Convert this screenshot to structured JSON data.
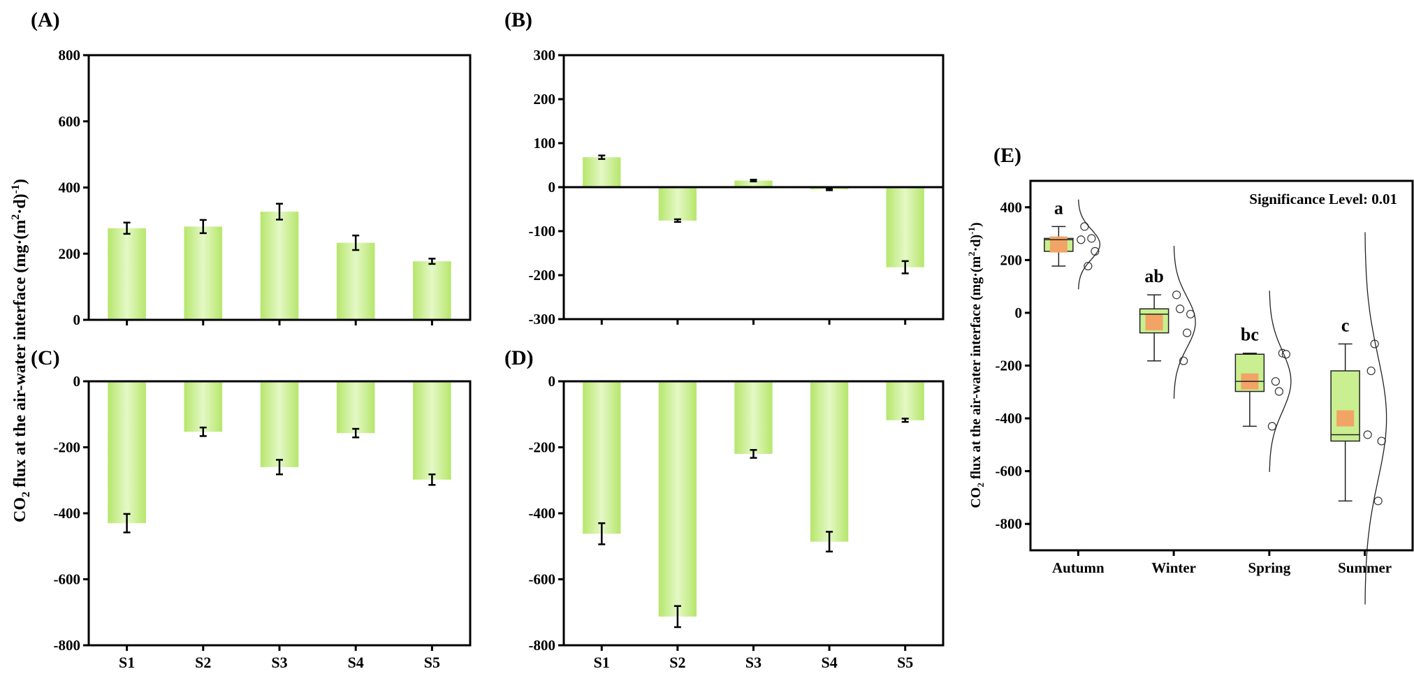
{
  "panel_labels": {
    "A": "(A)",
    "B": "(B)",
    "C": "(C)",
    "D": "(D)",
    "E": "(E)"
  },
  "ylabel": {
    "co": "CO",
    "sub2": "2",
    "mid": " flux at the air-water interface (mg·(m",
    "sup2": "2",
    "d": "·d)",
    "supm1": "-1",
    "end": ")"
  },
  "significance": "Significance Level: 0.01",
  "colors": {
    "bar_edge": "#b6e66b",
    "bar_center": "#e4f8c6",
    "box_fill": "#c9ef90",
    "mean_fill": "#f2a466",
    "axis": "#000000"
  },
  "chart_data": [
    {
      "id": "A",
      "type": "bar",
      "season": "Autumn",
      "categories": [
        "S1",
        "S2",
        "S3",
        "S4",
        "S5"
      ],
      "values": [
        277,
        282,
        327,
        233,
        177
      ],
      "errors": [
        17,
        20,
        24,
        22,
        8
      ],
      "ylim": [
        0,
        800
      ],
      "yticks": [
        0,
        200,
        400,
        600,
        800
      ],
      "show_xlabels": false
    },
    {
      "id": "B",
      "type": "bar",
      "season": "Winter",
      "categories": [
        "S1",
        "S2",
        "S3",
        "S4",
        "S5"
      ],
      "values": [
        68,
        -76,
        15,
        -5,
        -182
      ],
      "errors": [
        4,
        3,
        2,
        2,
        14
      ],
      "ylim": [
        -300,
        300
      ],
      "yticks": [
        -300,
        -200,
        -100,
        0,
        100,
        200,
        300
      ],
      "show_xlabels": false
    },
    {
      "id": "C",
      "type": "bar",
      "season": "Spring",
      "categories": [
        "S1",
        "S2",
        "S3",
        "S4",
        "S5"
      ],
      "values": [
        -430,
        -153,
        -260,
        -157,
        -298
      ],
      "errors": [
        28,
        13,
        22,
        13,
        16
      ],
      "ylim": [
        -800,
        0
      ],
      "yticks": [
        -800,
        -600,
        -400,
        -200,
        0
      ],
      "show_xlabels": true
    },
    {
      "id": "D",
      "type": "bar",
      "season": "Summer",
      "categories": [
        "S1",
        "S2",
        "S3",
        "S4",
        "S5"
      ],
      "values": [
        -462,
        -713,
        -220,
        -486,
        -118
      ],
      "errors": [
        32,
        32,
        12,
        30,
        5
      ],
      "ylim": [
        -800,
        0
      ],
      "yticks": [
        -800,
        -600,
        -400,
        -200,
        0
      ],
      "show_xlabels": true
    },
    {
      "id": "E",
      "type": "box",
      "categories": [
        "Autumn",
        "Winter",
        "Spring",
        "Summer"
      ],
      "ylim": [
        -900,
        500
      ],
      "yticks": [
        -800,
        -600,
        -400,
        -200,
        0,
        200,
        400
      ],
      "groups": [
        {
          "name": "Autumn",
          "letter": "a",
          "points": [
            277,
            282,
            327,
            233,
            177
          ],
          "q1": 233,
          "median": 277,
          "q3": 282,
          "whisker_low": 177,
          "whisker_high": 327,
          "mean": 259
        },
        {
          "name": "Winter",
          "letter": "ab",
          "points": [
            68,
            -76,
            15,
            -5,
            -182
          ],
          "q1": -76,
          "median": -5,
          "q3": 15,
          "whisker_low": -182,
          "whisker_high": 68,
          "mean": -36
        },
        {
          "name": "Spring",
          "letter": "bc",
          "points": [
            -430,
            -153,
            -260,
            -157,
            -298
          ],
          "q1": -298,
          "median": -260,
          "q3": -157,
          "whisker_low": -430,
          "whisker_high": -153,
          "mean": -260
        },
        {
          "name": "Summer",
          "letter": "c",
          "points": [
            -462,
            -713,
            -220,
            -486,
            -118
          ],
          "q1": -486,
          "median": -462,
          "q3": -220,
          "whisker_low": -713,
          "whisker_high": -118,
          "mean": -400
        }
      ]
    }
  ]
}
